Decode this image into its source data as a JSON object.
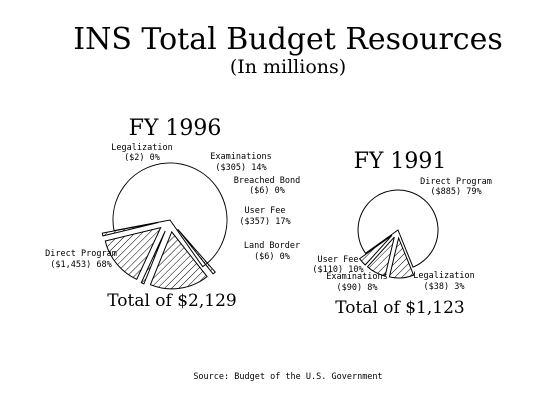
{
  "title": "INS Total Budget Resources",
  "subtitle": "(In millions)",
  "source": "Source:  Budget of the U.S. Government",
  "chart_data": [
    {
      "type": "pie",
      "title": "FY 1996",
      "total_label": "Total of $2,129",
      "slices": [
        {
          "name": "Direct Program",
          "amount_label": "($1,453)",
          "pct_label": "68%",
          "value": 1453,
          "exploded": false,
          "hatch": false
        },
        {
          "name": "Legalization",
          "amount_label": "($2)",
          "pct_label": "0%",
          "value": 2,
          "exploded": true,
          "hatch": true
        },
        {
          "name": "Examinations",
          "amount_label": "($305)",
          "pct_label": "14%",
          "value": 305,
          "exploded": true,
          "hatch": true
        },
        {
          "name": "Breached Bond",
          "amount_label": "($6)",
          "pct_label": "0%",
          "value": 6,
          "exploded": true,
          "hatch": true
        },
        {
          "name": "User Fee",
          "amount_label": "($357)",
          "pct_label": "17%",
          "value": 357,
          "exploded": true,
          "hatch": true
        },
        {
          "name": "Land Border",
          "amount_label": "($6)",
          "pct_label": "0%",
          "value": 6,
          "exploded": true,
          "hatch": true
        }
      ]
    },
    {
      "type": "pie",
      "title": "FY 1991",
      "total_label": "Total of $1,123",
      "slices": [
        {
          "name": "Direct Program",
          "amount_label": "($885)",
          "pct_label": "79%",
          "value": 885,
          "exploded": false,
          "hatch": false
        },
        {
          "name": "Legalization",
          "amount_label": "($38)",
          "pct_label": "3%",
          "value": 38,
          "exploded": true,
          "hatch": true
        },
        {
          "name": "Examinations",
          "amount_label": "($90)",
          "pct_label": "8%",
          "value": 90,
          "exploded": true,
          "hatch": true
        },
        {
          "name": "User Fee",
          "amount_label": "($110)",
          "pct_label": "10%",
          "value": 110,
          "exploded": true,
          "hatch": true
        }
      ]
    }
  ]
}
